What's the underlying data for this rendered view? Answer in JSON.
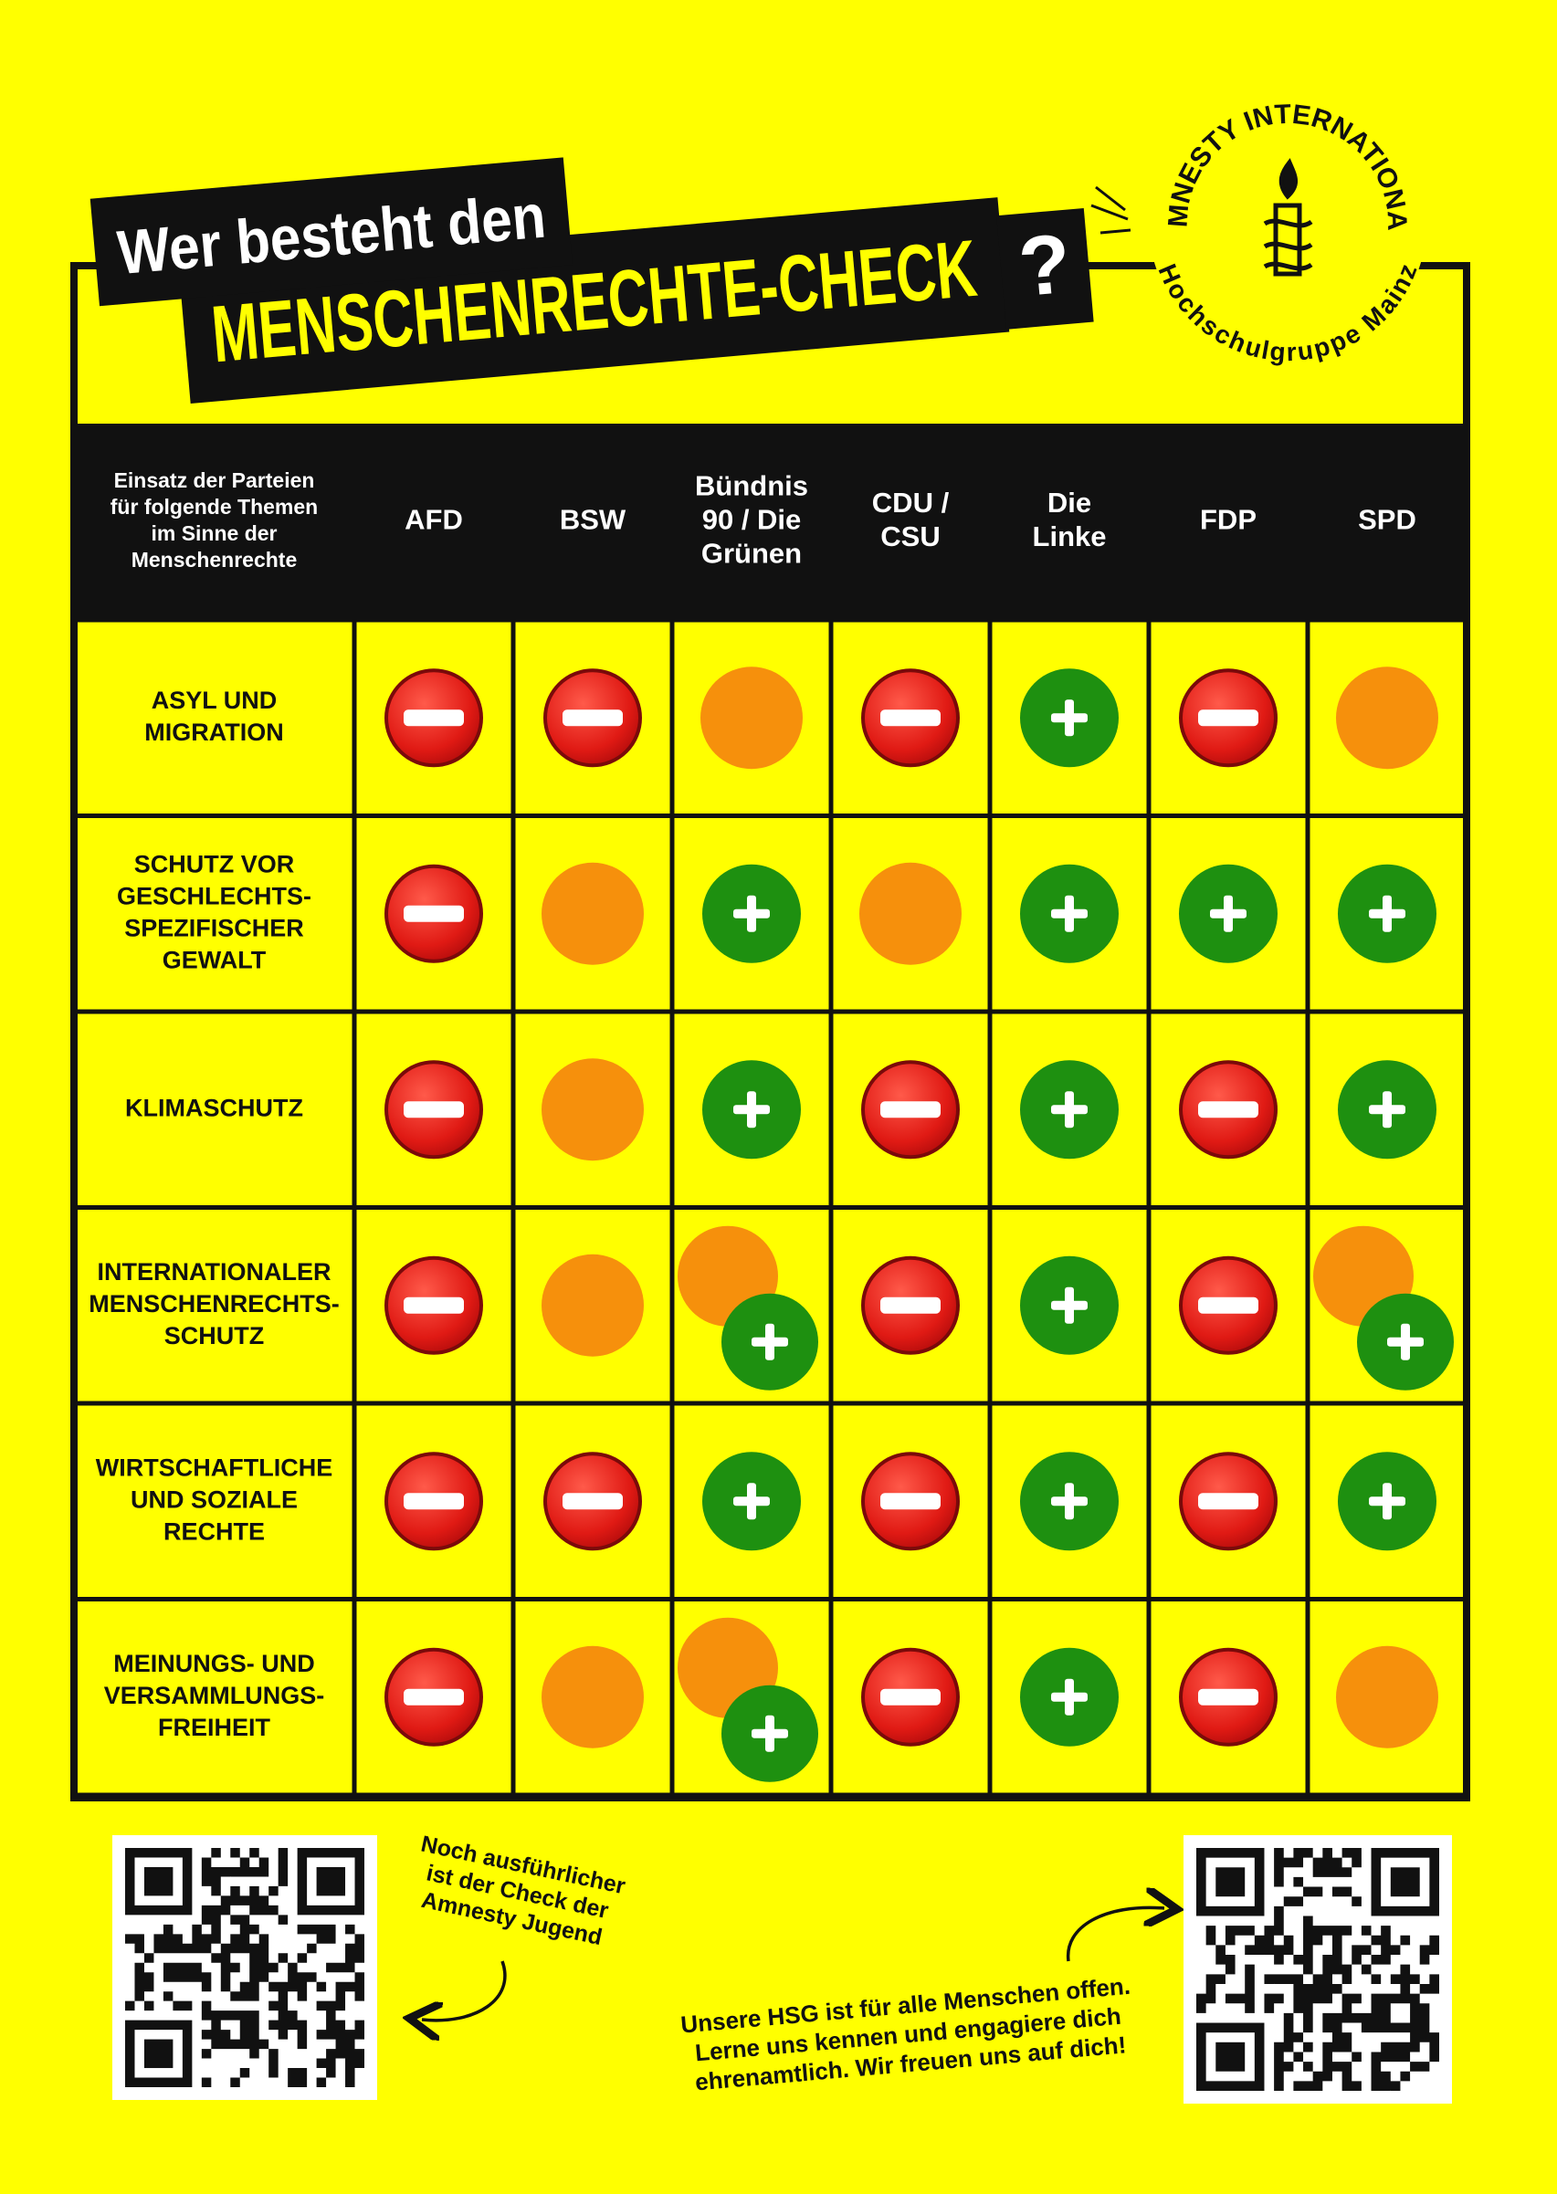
{
  "title": {
    "line1": "Wer besteht den",
    "line2": "MENSCHENRECHTE-CHECK",
    "mark": "?"
  },
  "logo": {
    "top": "AMNESTY INTERNATIONAL",
    "bottom": "Hochschulgruppe Mainz"
  },
  "table": {
    "corner": [
      "Einsatz der Parteien",
      "für folgende Themen",
      "im Sinne der",
      "Menschenrechte"
    ],
    "parties": [
      [
        "AFD"
      ],
      [
        "BSW"
      ],
      [
        "Bündnis",
        "90 / Die",
        "Grünen"
      ],
      [
        "CDU /",
        "CSU"
      ],
      [
        "Die",
        "Linke"
      ],
      [
        "FDP"
      ],
      [
        "SPD"
      ]
    ],
    "rows": [
      {
        "topic": [
          "ASYL UND",
          "MIGRATION"
        ],
        "ratings": [
          "minus",
          "minus",
          "neutral",
          "minus",
          "plus",
          "minus",
          "neutral"
        ]
      },
      {
        "topic": [
          "SCHUTZ VOR",
          "GESCHLECHTS-",
          "SPEZIFISCHER",
          "GEWALT"
        ],
        "ratings": [
          "minus",
          "neutral",
          "plus",
          "neutral",
          "plus",
          "plus",
          "plus"
        ]
      },
      {
        "topic": [
          "KLIMASCHUTZ"
        ],
        "ratings": [
          "minus",
          "neutral",
          "plus",
          "minus",
          "plus",
          "minus",
          "plus"
        ]
      },
      {
        "topic": [
          "INTERNATIONALER",
          "MENSCHENRECHTS-",
          "SCHUTZ"
        ],
        "ratings": [
          "minus",
          "neutral",
          "mixed",
          "minus",
          "plus",
          "minus",
          "mixed"
        ]
      },
      {
        "topic": [
          "WIRTSCHAFTLICHE",
          "UND SOZIALE",
          "RECHTE"
        ],
        "ratings": [
          "minus",
          "minus",
          "plus",
          "minus",
          "plus",
          "minus",
          "plus"
        ]
      },
      {
        "topic": [
          "MEINUNGS- UND",
          "VERSAMMLUNGS-",
          "FREIHEIT"
        ],
        "ratings": [
          "minus",
          "neutral",
          "mixed",
          "minus",
          "plus",
          "minus",
          "neutral"
        ]
      }
    ]
  },
  "notes": {
    "jugend": [
      "Noch ausführlicher",
      "ist der Check der",
      "Amnesty Jugend"
    ],
    "hsg": [
      "Unsere HSG ist für alle Menschen offen.",
      "Lerne uns kennen und engagiere dich",
      "ehrenamtlich. Wir freuen uns auf dich!"
    ]
  }
}
